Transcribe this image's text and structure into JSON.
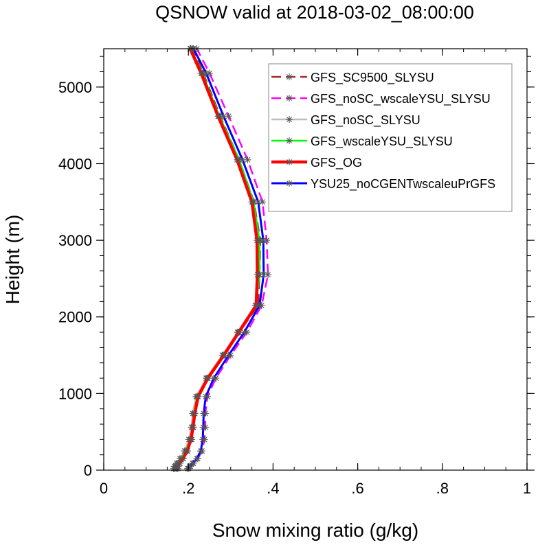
{
  "chart_data": {
    "type": "line",
    "title": "QSNOW valid at 2018-03-02_08:00:00",
    "xlabel": "Snow mixing ratio (g/kg)",
    "ylabel": "Height (m)",
    "xlim": [
      0,
      1
    ],
    "ylim": [
      0,
      5500
    ],
    "x_ticks": [
      0,
      0.2,
      0.4,
      0.6,
      0.8,
      1
    ],
    "x_tick_labels": [
      "0",
      ".2",
      ".4",
      ".6",
      ".8",
      "1"
    ],
    "y_ticks": [
      0,
      1000,
      2000,
      3000,
      4000,
      5000
    ],
    "y_tick_labels": [
      "0",
      "1000",
      "2000",
      "3000",
      "4000",
      "5000"
    ],
    "legend_position": "top-right",
    "heights": [
      20,
      50,
      90,
      150,
      250,
      400,
      560,
      740,
      960,
      1200,
      1500,
      1800,
      2150,
      2550,
      3000,
      3500,
      4050,
      4620,
      5180,
      5500
    ],
    "series": [
      {
        "name": "GFS_SC9500_SLYSU",
        "color": "#a52a2a",
        "dash": "dash",
        "x": [
          0.175,
          0.176,
          0.18,
          0.188,
          0.198,
          0.208,
          0.212,
          0.215,
          0.222,
          0.245,
          0.285,
          0.32,
          0.365,
          0.368,
          0.37,
          0.355,
          0.32,
          0.275,
          0.235,
          0.21
        ]
      },
      {
        "name": "GFS_noSC_wscaleYSU_SLYSU",
        "color": "#ff00ff",
        "dash": "dash",
        "x": [
          0.2,
          0.205,
          0.212,
          0.222,
          0.232,
          0.238,
          0.24,
          0.24,
          0.245,
          0.265,
          0.3,
          0.338,
          0.373,
          0.388,
          0.385,
          0.375,
          0.34,
          0.295,
          0.25,
          0.22
        ]
      },
      {
        "name": "GFS_noSC_SLYSU",
        "color": "#bebebe",
        "dash": "solid",
        "x": [
          0.165,
          0.167,
          0.172,
          0.18,
          0.191,
          0.201,
          0.207,
          0.21,
          0.218,
          0.242,
          0.28,
          0.316,
          0.358,
          0.365,
          0.365,
          0.352,
          0.318,
          0.272,
          0.232,
          0.205
        ]
      },
      {
        "name": "GFS_wscaleYSU_SLYSU",
        "color": "#00ff00",
        "dash": "solid",
        "x": [
          0.168,
          0.17,
          0.175,
          0.183,
          0.194,
          0.204,
          0.21,
          0.213,
          0.221,
          0.244,
          0.282,
          0.318,
          0.36,
          0.368,
          0.368,
          0.354,
          0.32,
          0.273,
          0.233,
          0.206
        ]
      },
      {
        "name": "GFS_OG",
        "color": "#ff0000",
        "dash": "solid",
        "x": [
          0.172,
          0.174,
          0.179,
          0.187,
          0.197,
          0.206,
          0.211,
          0.215,
          0.223,
          0.246,
          0.284,
          0.319,
          0.36,
          0.363,
          0.362,
          0.35,
          0.315,
          0.27,
          0.23,
          0.204
        ]
      },
      {
        "name": "YSU25_noCGENTwscaleuPrGFS",
        "color": "#0000ff",
        "dash": "solid",
        "x": [
          0.198,
          0.203,
          0.21,
          0.22,
          0.229,
          0.234,
          0.235,
          0.236,
          0.241,
          0.26,
          0.295,
          0.332,
          0.368,
          0.378,
          0.377,
          0.365,
          0.328,
          0.283,
          0.242,
          0.212
        ]
      }
    ]
  }
}
